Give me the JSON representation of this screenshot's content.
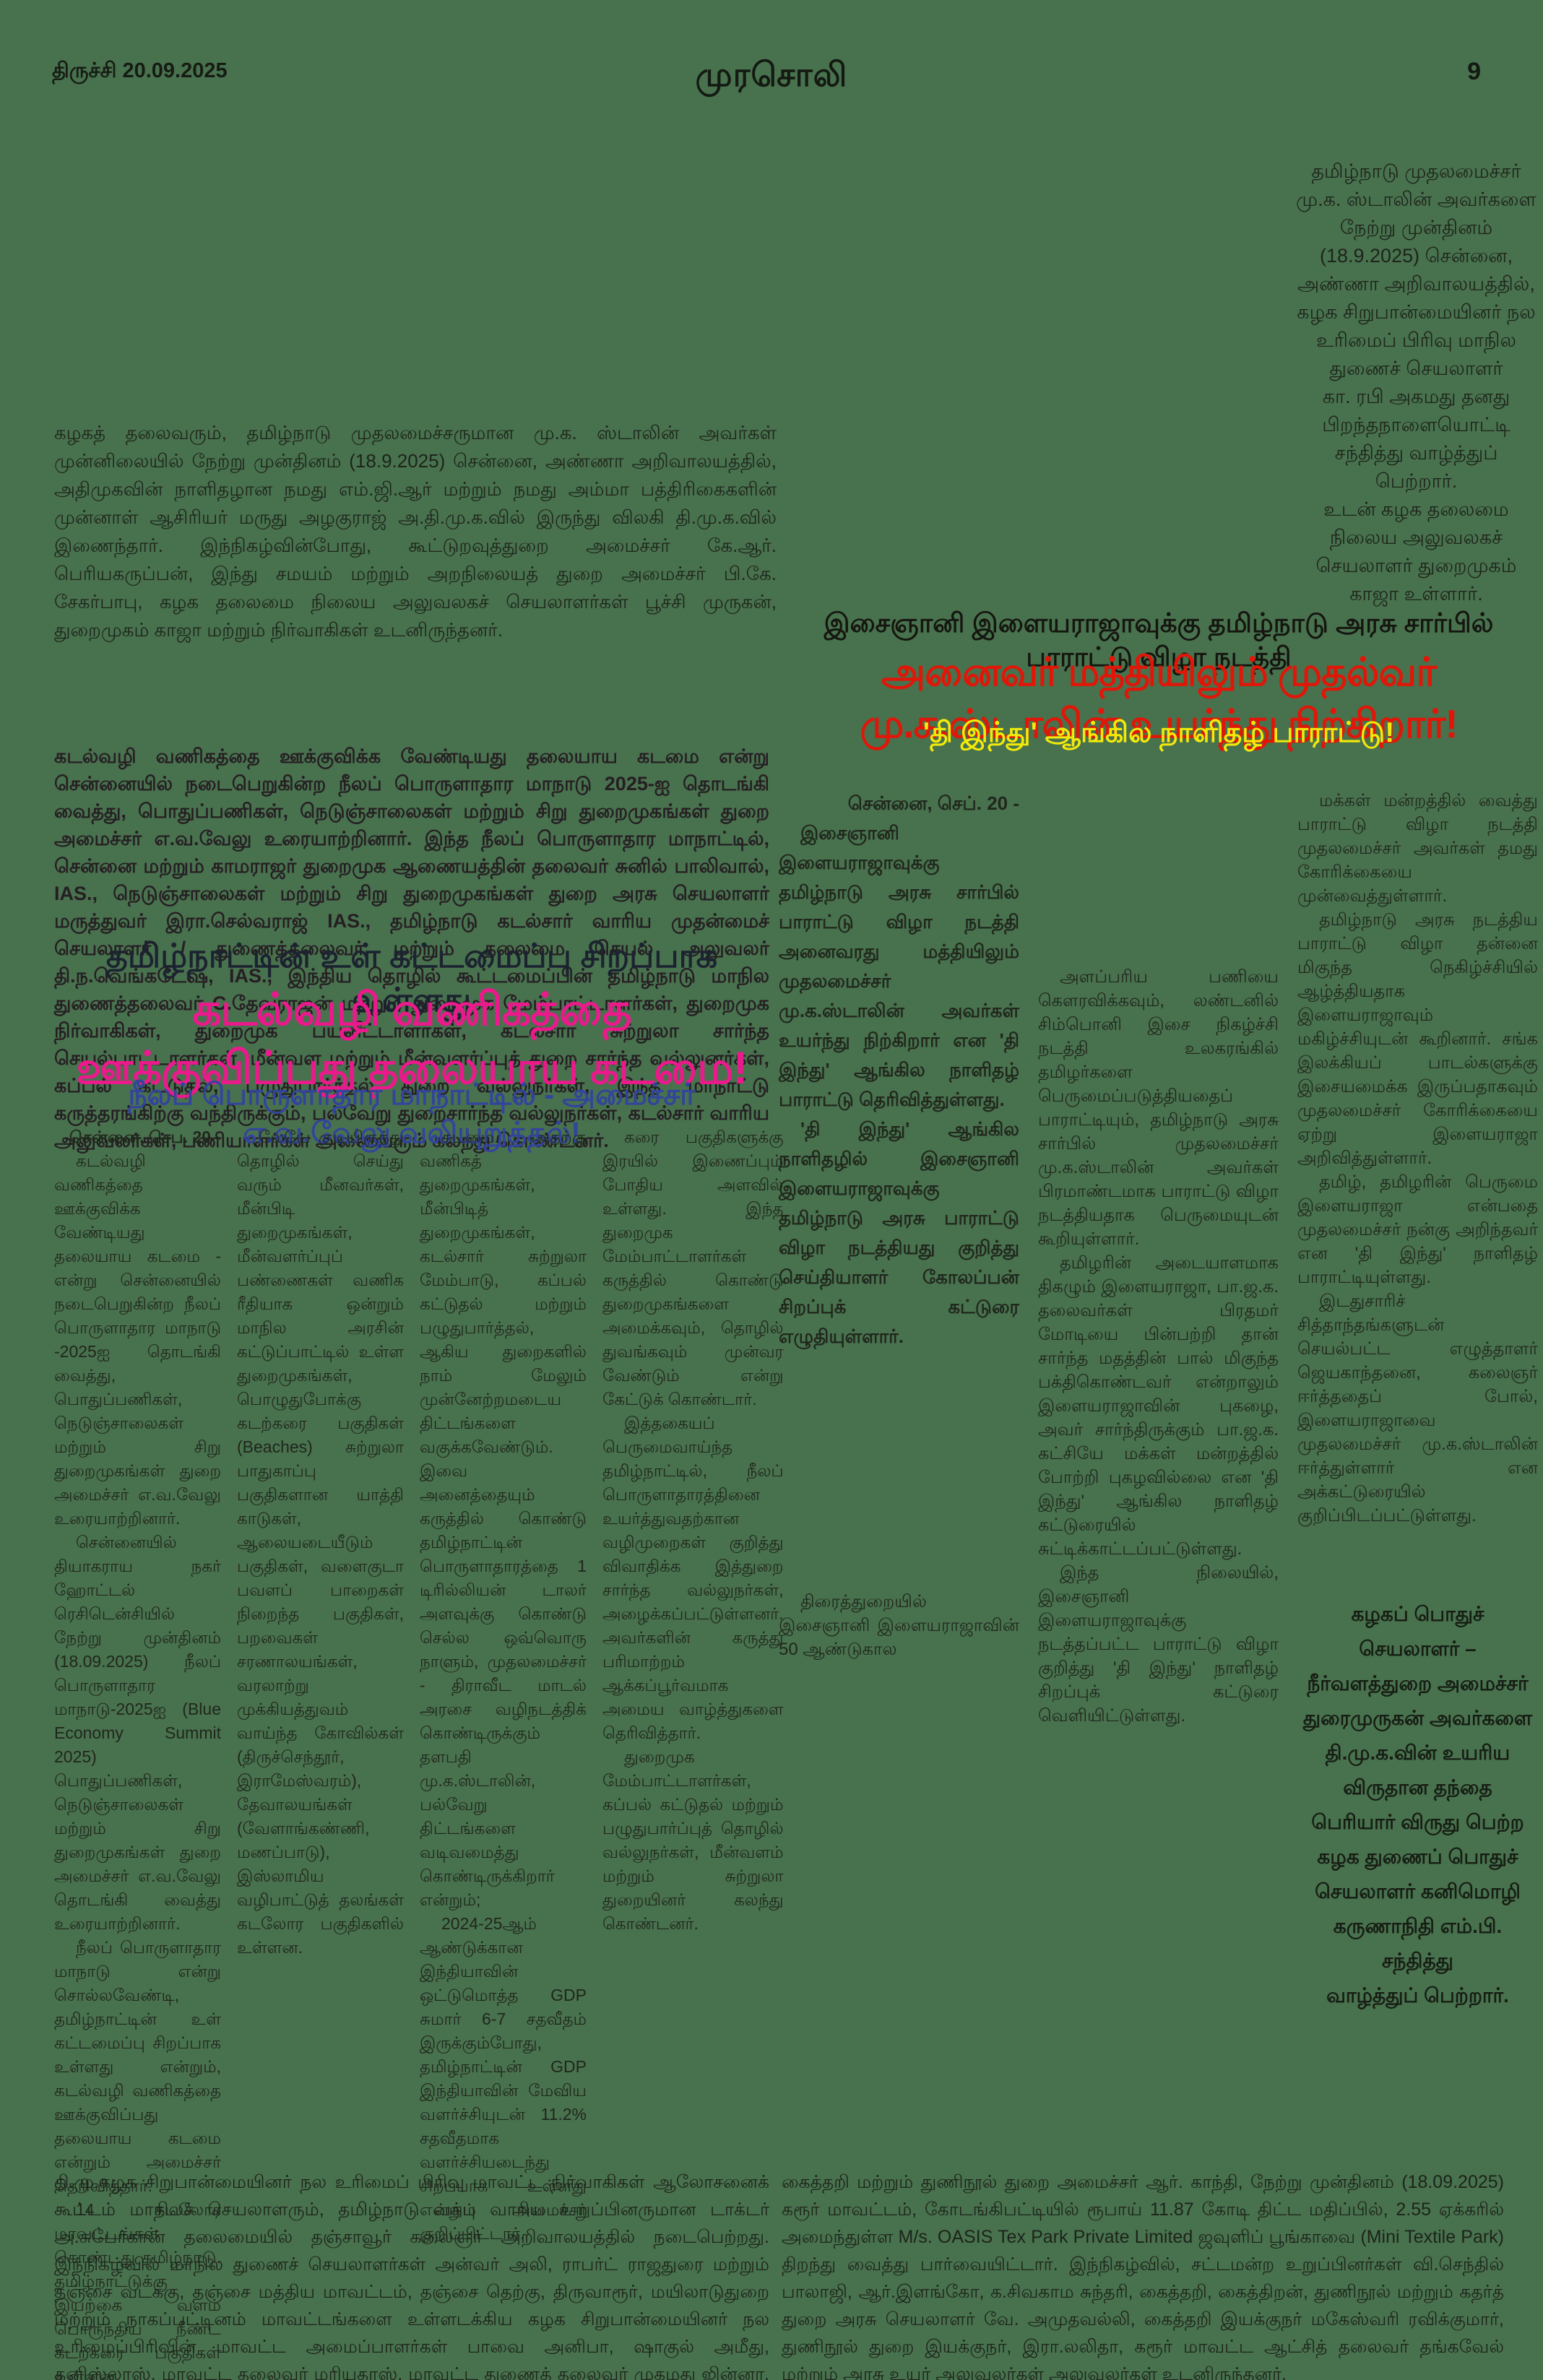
{
  "header": {
    "place_date": "திருச்சி    20.09.2025",
    "masthead": "முரசொலி",
    "page_number": "9"
  },
  "captions": {
    "top_left": "கழகத் தலைவரும், தமிழ்நாடு முதலமைச்சருமான மு.க. ஸ்டாலின் அவர்கள் முன்னிலையில் நேற்று முன்தினம் (18.9.2025) சென்னை, அண்ணா அறிவாலயத்தில், அதிமுகவின் நாளிதழான நமது எம்.ஜி.ஆர் மற்றும் நமது அம்மா பத்திரிகைகளின் முன்னாள் ஆசிரியர் மருது அழகுராஜ் அ.தி.மு.க.வில் இருந்து விலகி தி.மு.க.வில் இணைந்தார். இந்நிகழ்வின்போது, கூட்டுறவுத்துறை அமைச்சர் கே.ஆர். பெரியகருப்பன், இந்து சமயம் மற்றும் அறநிலையத் துறை அமைச்சர் பி.கே. சேகர்பாபு, கழக தலைமை நிலைய அலுவலகச் செயலாளர்கள் பூச்சி முருகன், துறைமுகம் காஜா மற்றும் நிர்வாகிகள் உடனிருந்தனர்.",
    "top_right": "தமிழ்நாடு முதலமைச்சர்\nமு.க. ஸ்டாலின் அவர்களை\nநேற்று முன்தினம்\n(18.9.2025) சென்னை,\nஅண்ணா அறிவாலயத்தில்,\nகழக சிறுபான்மையினர் நல\nஉரிமைப் பிரிவு மாநில\nதுணைச் செயலாளர்\nகா. ரபி அகமது தனது\nபிறந்தநாளையொட்டி\nசந்தித்து வாழ்த்துப் பெற்றார்.\nஉடன் கழக தலைமை\nநிலைய அலுவலகச்\nசெயலாளர் துறைமுகம்\nகாஜா உள்ளார்.",
    "bottom_left": "தி.மு.கழக சிறுபான்மையினர் நல உரிமைப் பிரிவு மாவட்ட நிர்வாகிகள் ஆலோசனைக் கூட்டம் மாநிலச் செயலாளரும், தமிழ்நாடு வக்பு வாரிய உறுப்பினருமான டாக்டர் அ.சுபேர்கான் தலைமையில் தஞ்சாவூர் கலைஞர் அறிவாலயத்தில் நடைபெற்றது. இந்நிகழ்வில் மாநில துணைச் செயலாளர்கள் அன்வர் அலி, ராபர்ட் ராஜதுரை மற்றும் தஞ்சை வடக்கு, தஞ்சை மத்திய மாவட்டம், தஞ்சை தெற்கு, திருவாரூர், மயிலாடுதுறை மற்றும் நாகப்பட்டினம் மாவட்டங்களை உள்ளடக்கிய கழக சிறுபான்மையினர் நல உரிமைப்பிரிவின் மாவட்ட அமைப்பாளர்கள் பாவை அனிபா, ஷாகுல் அமீது, தனிஸ்லாஸ், மாவட்ட தலைவர் மரியதாஸ், மாவட்ட துணைத் தலைவர் முகமது ஜின்னா, மாவட்ட துணை அமைப்பாளர்கள் பஷீர் அகமது, அந்தோணி சாமி, அமானுல்லா, அமீது, ராயல் அலி, முகமது ஆரிஃப் மற்றும் ஏராளமான கழக நிர்வாகிகள் பங்கேற்றனர்.",
    "bottom_right": "கைத்தறி மற்றும் துணிநூல் துறை அமைச்சர் ஆர். காந்தி, நேற்று முன்தினம் (18.09.2025) கரூர் மாவட்டம், கோடங்கிபட்டியில் ரூபாய் 11.87 கோடி திட்ட மதிப்பில், 2.55 ஏக்கரில் அமைந்துள்ள M/s. OASIS Tex Park Private Limited ஜவுளிப் பூங்காவை (Mini Textile Park) திறந்து வைத்து பார்வையிட்டார். இந்நிகழ்வில், சட்டமன்ற உறுப்பினர்கள் வி.செந்தில் பாலாஜி, ஆர்.இளங்கோ, க.சிவகாம சுந்தரி, கைத்தறி, கைத்திறன், துணிநூல் மற்றும் கதர்த் துறை அரசு செயலாளர் வே. அமுதவல்லி, கைத்தறி இயக்குநர் மகேஸ்வரி ரவிக்குமார், துணிநூல் துறை இயக்குநர், இரா.லலிதா, கரூர் மாவட்ட ஆட்சித் தலைவர் தங்கவேல் மற்றும் அரசு உயர் அலுவலர்கள் அலுவலர்கள் உடனிருந்தனர்."
  },
  "article_right": {
    "kicker": "இசைஞானி இளையராஜாவுக்கு தமிழ்நாடு அரசு சார்பில் பாராட்டு விழா நடத்தி",
    "headline": "அனைவர் மத்தியிலும் முதல்வர் மு.க.ஸ்டாலின் உயர்ந்து நிற்கிறார்!",
    "subhead": "'தி இந்து' ஆங்கில நாளிதழ் பாராட்டு!",
    "col1": [
      "சென்னை, செப். 20 -",
      "இசைஞானி இளையராஜாவுக்கு தமிழ்நாடு அரசு சார்பில் பாராட்டு விழா நடத்தி அனைவரது மத்தியிலும் முதலமைச்சர் மு.க.ஸ்டாலின் அவர்கள் உயர்ந்து நிற்கிறார் என 'தி இந்து' ஆங்கில நாளிதழ் பாராட்டு தெரிவித்துள்ளது.",
      "'தி இந்து' ஆங்கில நாளிதழில் இசைஞானி இளையராஜாவுக்கு தமிழ்நாடு அரசு பாராட்டு விழா நடத்தியது குறித்து செய்தியாளர் கோலப்பன் சிறப்புக் கட்டுரை எழுதியுள்ளார்.",
      "திரைத்துறையில் இசைஞானி இளையராஜாவின் 50 ஆண்டுகால"
    ],
    "col2": [
      "அளப்பரிய பணியை கௌரவிக்கவும், லண்டனில் சிம்பொனி இசை நிகழ்ச்சி நடத்தி உலகரங்கில் தமிழர்களை பெருமைப்படுத்தியதைப் பாராட்டியும், தமிழ்நாடு அரசு சார்பில் முதலமைச்சர் மு.க.ஸ்டாலின் அவர்கள் பிரமாண்டமாக பாராட்டு விழா நடத்தியதாக பெருமையுடன் கூறியுள்ளார்.",
      "தமிழரின் அடையாளமாக திகழும் இளையராஜா, பா.ஜ.க. தலைவர்கள் பிரதமர் மோடியை பின்பற்றி தான் சார்ந்த மதத்தின் பால் மிகுந்த பக்திகொண்டவர் என்றாலும் இளையராஜாவின் புகழை, அவர் சார்ந்திருக்கும் பா.ஜ.க. கட்சியே மக்கள் மன்றத்தில் போற்றி புகழவில்லை என 'தி இந்து' ஆங்கில நாளிதழ் கட்டுரையில் சுட்டிக்காட்டப்பட்டுள்ளது.",
      "இந்த நிலையில், இசைஞானி இளையராஜாவுக்கு நடத்தப்பட்ட பாராட்டு விழா குறித்து 'தி இந்து' நாளிதழ் சிறப்புக் கட்டுரை வெளியிட்டுள்ளது."
    ],
    "col3": [
      "மக்கள் மன்றத்தில் வைத்து பாராட்டு விழா நடத்தி முதலமைச்சர் அவர்கள் தமது கோரிக்கையை முன்வைத்துள்ளார்.",
      "தமிழ்நாடு அரசு நடத்திய பாராட்டு விழா தன்னை மிகுந்த நெகிழ்ச்சியில் ஆழ்த்தியதாக இளையராஜாவும் மகிழ்ச்சியுடன் கூறினார். சங்க இலக்கியப் பாடல்களுக்கு இசையமைக்க இருப்பதாகவும் முதலமைச்சர் கோரிக்கையை ஏற்று இளையராஜா அறிவித்துள்ளார்.",
      "தமிழ், தமிழரின் பெருமை இளையராஜா என்பதை முதலமைச்சர் நன்கு அறிந்தவர் என 'தி இந்து' நாளிதழ் பாராட்டியுள்ளது.",
      "இடதுசாரிச் சித்தாந்தங்களுடன் செயல்பட்ட எழுத்தாளர் ஜெயகாந்தனை, கலைஞர் ஈர்த்ததைப் போல், இளையராஜாவை முதலமைச்சர் மு.க.ஸ்டாலின் ஈர்த்துள்ளார் என அக்கட்டுரையில் குறிப்பிடப்பட்டுள்ளது."
    ],
    "credit_block": "கழகப் பொதுச்\nசெயலாளர் –\nநீர்வளத்துறை அமைச்சர்\nதுரைமுருகன் அவர்களை\nதி.மு.க.வின் உயரிய\nவிருதான தந்தை\nபெரியார் விருது பெற்ற\nகழக துணைப் பொதுச்\nசெயலாளர் கனிமொழி\nகருணாநிதி எம்.பி.\nசந்தித்து\nவாழ்த்துப் பெற்றார்."
  },
  "article_left": {
    "intro": "கடல்வழி வணிகத்தை ஊக்குவிக்க வேண்டியது தலையாய கடமை என்று சென்னையில் நடைபெறுகின்ற நீலப் பொருளாதார மாநாடு 2025-ஐ தொடங்கி வைத்து, பொதுப்பணிகள், நெடுஞ்சாலைகள் மற்றும் சிறு துறைமுகங்கள் துறை அமைச்சர் எ.வ.வேலு உரையாற்றினார். இந்த நீலப் பொருளாதார மாநாட்டில், சென்னை மற்றும் காமராஜர் துறைமுக ஆணையத்தின் தலைவர் சுனில் பாலிவால், IAS., நெடுஞ்சாலைகள் மற்றும் சிறு துறைமுகங்கள் துறை அரசு செயலாளர் மருத்துவர் இரா.செல்வராஜ் IAS., தமிழ்நாடு கடல்சார் வாரிய முதன்மைச் செயலாளர் / துணைத்தலைவர் மற்றும் தலைமை செயல் அலுவலர் தி.ந.வெங்கடேஷ், IAS., இந்திய தொழில் கூட்டமைப்பின் தமிழ்நாடு மாநில துணைத்தலைவர் C.தேவராஜன் மற்றும் துறைமுக மேம்பாட்டாளர்கள், துறைமுக நிர்வாகிகள், துறைமுக பயனீட்டாளர்கள், கடல்சார் சுற்றுலா சார்ந்த செயல்பாட்டாளர்கள், மீன்வள மற்றும் மீன்வளர்ப்புத் துறை சார்ந்த வல்லுனர்கள், கப்பல் கட்டுதல், பழுதுபார்த்தல் துறை வல்லுநர்கள், இந்த மாநாட்டு கருத்தரங்கிற்கு வந்திருக்கும், பல்வேறு துறைசார்ந்த வல்லுநர்கள், கடல்சார் வாரிய அலுவலர்கள், பணியாளர்கள் அனைவரும் கலந்து கொண்டனர்.",
    "kicker": "தமிழ்நாட்டின் உள் கட்டமைப்பு சிறப்பாக உள்ளது",
    "headline": "கடல்வழி வணிகத்தை ஊக்குவிப்பது தலையாய கடமை!",
    "subhead": "நீலப் பொருளாதார மாநாட்டில் - அமைச்சர் எ.வ.வேலு வலியுறுத்தல்!",
    "col1": [
      "சென்னை, செப. 20 -",
      "கடல்வழி வணிகத்தை ஊக்குவிக்க வேண்டியது தலையாய கடமை - என்று சென்னையில் நடைபெறுகின்ற நீலப் பொருளாதார மாநாடு -2025ஐ தொடங்கி வைத்து, பொதுப்பணிகள், நெடுஞ்சாலைகள் மற்றும் சிறு துறைமுகங்கள் துறை அமைச்சர் எ.வ.வேலு உரையாற்றினார்.",
      "சென்னையில் தியாகராய நகர் ஹோட்டல் ரெசிடென்சியில் நேற்று முன்தினம் (18.09.2025) நீலப் பொருளாதார மாநாடு-2025ஐ (Blue Economy Summit 2025) பொதுப்பணிகள், நெடுஞ்சாலைகள் மற்றும் சிறு துறைமுகங்கள் துறை அமைச்சர் எ.வ.வேலு தொடங்கி வைத்து உரையாற்றினார்.",
      "நீலப் பொருளாதார மாநாடு என்று சொல்லவேண்டி, தமிழ்நாட்டின் உள் கட்டமைப்பு சிறப்பாக உள்ளது என்றும், கடல்வழி வணிகத்தை ஊக்குவிப்பது தலையாய கடமை என்றும் அமைச்சர் தெரிவித்தார்.",
      "14 கடலோர மாவட்டங்கள் கொண்டது தமிழ்நாடு. தமிழ்நாட்டுக்கு இயற்கை வளம் பொருந்திய நீண்ட கடற்கரை பகுதிகள் உள்ளன."
    ],
    "col2": [
      "லேயே குடியிருந்து தொழில் செய்து வரும் மீனவர்கள், மீன்பிடி துறைமுகங்கள், மீன்வளர்ப்புப் பண்ணைகள் வணிக ரீதியாக ஒன்றும் மாநில அரசின் கட்டுப்பாட்டில் உள்ள துறைமுகங்கள், பொழுதுபோக்கு கடற்கரை பகுதிகள் (Beaches) சுற்றுலா பாதுகாப்பு பகுதிகளான யாத்தி காடுகள், ஆலையடையீடும் பகுதிகள், வளைகுடா பவளப் பாறைகள் நிறைந்த பகுதிகள், பறவைகள் சரணாலயங்கள், வரலாற்று முக்கியத்துவம் வாய்ந்த கோவில்கள் (திருச்செந்தூர், இராமேஸ்வரம்), தேவாலயங்கள் (வேளாங்கண்ணி, மணப்பாடு), இஸ்லாமிய வழிபாட்டுத் தலங்கள் கடலோர பகுதிகளில் உள்ளன."
    ],
    "col3": [
      "கடமை. அதற்கு வணிகத் துறைமுகங்கள், மீன்பிடித் துறைமுகங்கள், கடல்சார் சுற்றுலா மேம்பாடு, கப்பல் கட்டுதல் மற்றும் பழுதுபார்த்தல், ஆகிய துறைகளில் நாம் மேலும் முன்னேற்றமடைய திட்டங்களை வகுக்கவேண்டும். இவை அனைத்தையும் கருத்தில் கொண்டு தமிழ்நாட்டின் பொருளாதாரத்தை 1 டிரில்லியன் டாலர் அளவுக்கு கொண்டு செல்ல ஒவ்வொரு நாளும், முதலமைச்சர் - திராவீட மாடல் அரசை வழிநடத்திக் கொண்டிருக்கும் தளபதி மு.க.ஸ்டாலின், பல்வேறு திட்டங்களை வடிவமைத்து கொண்டிருக்கிறார் என்றும்;",
      "2024-25ஆம் ஆண்டுக்கான இந்தியாவின் ஒட்டுமொத்த GDP சுமார் 6-7 சதவீதம் இருக்கும்போது, தமிழ்நாட்டின் GDP இந்தியாவின் மேவிய வளர்ச்சியுடன் 11.2% சதவீதமாக வளர்ச்சியடைந்து சிறப்பாக உள்ளது என்றும் அமைச்சர் குறிப்பிட்டார்."
    ],
    "col4": [
      "கரை பகுதிகளுக்கு இரயில் இணைப்பும் போதிய அளவில் உள்ளது. இந்த துறைமுக மேம்பாட்டாளர்கள் கருத்தில் கொண்டு துறைமுகங்களை அமைக்கவும், தொழில் துவங்கவும் முன்வர வேண்டும் என்று கேட்டுக் கொண்டார்.",
      "இத்தகையப் பெருமைவாய்ந்த தமிழ்நாட்டில், நீலப் பொருளாதாரத்தினை உயர்த்துவதற்கான வழிமுறைகள் குறித்து விவாதிக்க இத்துறை சார்ந்த வல்லுநர்கள், அழைக்கப்பட்டுள்ளனர். அவர்களின் கருத்து பரிமாற்றம் ஆக்கப்பூர்வமாக அமைய வாழ்த்துகளை தெரிவித்தார்.",
      "துறைமுக மேம்பாட்டாளர்கள், கப்பல் கட்டுதல் மற்றும் பழுதுபார்ப்புத் தொழில் வல்லுநர்கள், மீன்வளம் மற்றும் சுற்றுலா துறையினர் கலந்து கொண்டனர்."
    ]
  }
}
